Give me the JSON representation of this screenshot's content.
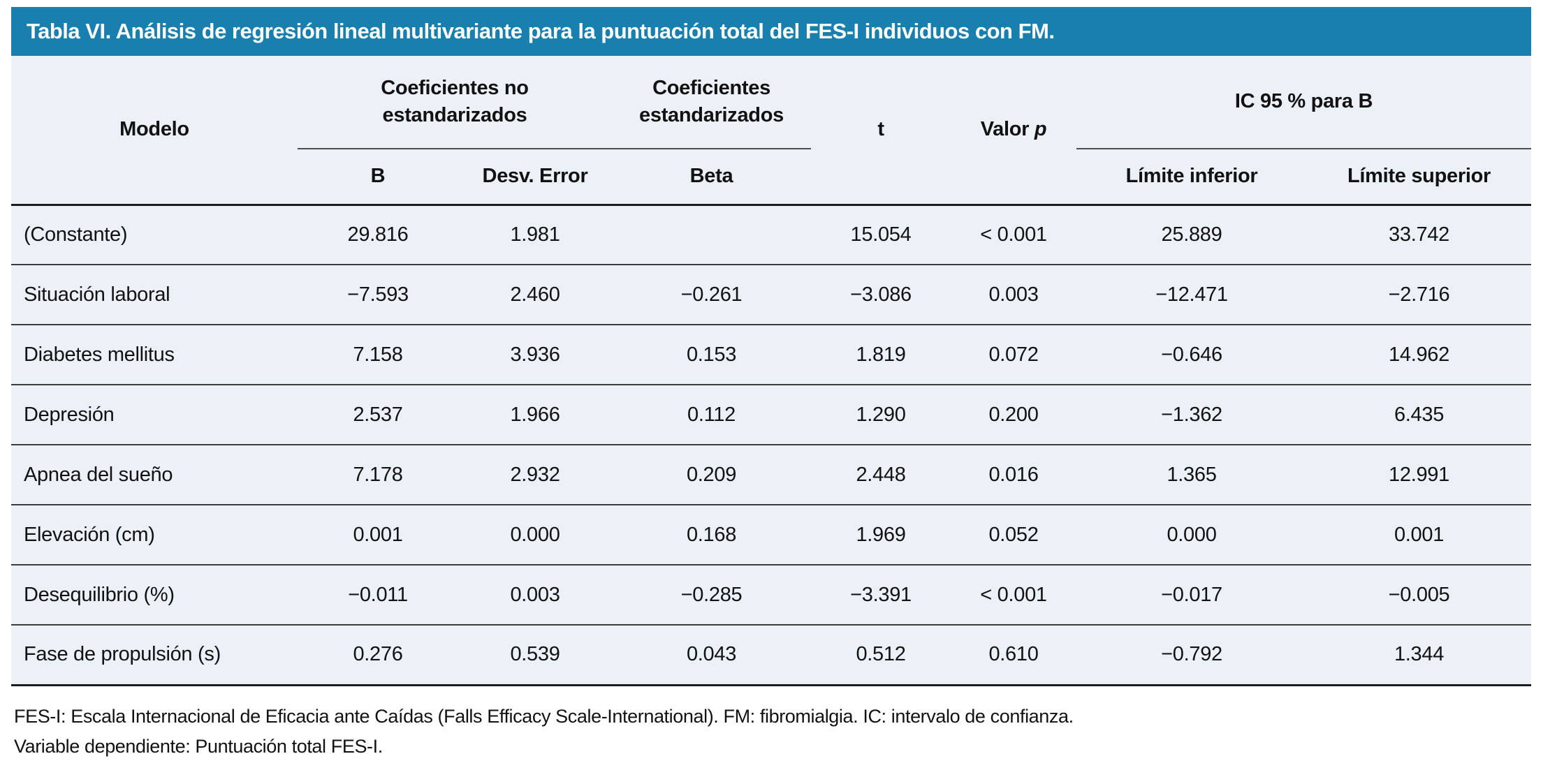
{
  "title": "Tabla VI. Análisis de regresión lineal multivariante para la puntuación total del FES-I individuos con FM.",
  "colors": {
    "header_bar_bg": "#187FAE",
    "header_bar_text": "#FFFFFF",
    "table_bg": "#ECF0F7",
    "text": "#121212",
    "rule_dark": "#1B1B1B",
    "rule_row": "#3D3D3D",
    "rule_spanner": "#4D4D4D",
    "page_bg": "#FFFFFF"
  },
  "header": {
    "model_label": "Modelo",
    "spanners": [
      {
        "label": "Coeficientes no estandarizados"
      },
      {
        "label": "Coeficientes estandarizados"
      },
      {
        "label": "IC 95 % para B"
      }
    ],
    "t_label": "t",
    "p_label_prefix": "Valor ",
    "p_label_italic": "p",
    "sub_headers": [
      "B",
      "Desv. Error",
      "Beta",
      "Límite inferior",
      "Límite superior"
    ]
  },
  "rows": [
    {
      "label": "(Constante)",
      "b": "29.816",
      "std_error": "1.981",
      "beta": "",
      "t": "15.054",
      "p": "< 0.001",
      "ci_lower": "25.889",
      "ci_upper": "33.742"
    },
    {
      "label": "Situación laboral",
      "b": "−7.593",
      "std_error": "2.460",
      "beta": "−0.261",
      "t": "−3.086",
      "p": "0.003",
      "ci_lower": "−12.471",
      "ci_upper": "−2.716"
    },
    {
      "label": "Diabetes mellitus",
      "b": "7.158",
      "std_error": "3.936",
      "beta": "0.153",
      "t": "1.819",
      "p": "0.072",
      "ci_lower": "−0.646",
      "ci_upper": "14.962"
    },
    {
      "label": "Depresión",
      "b": "2.537",
      "std_error": "1.966",
      "beta": "0.112",
      "t": "1.290",
      "p": "0.200",
      "ci_lower": "−1.362",
      "ci_upper": "6.435"
    },
    {
      "label": "Apnea del sueño",
      "b": "7.178",
      "std_error": "2.932",
      "beta": "0.209",
      "t": "2.448",
      "p": "0.016",
      "ci_lower": "1.365",
      "ci_upper": "12.991"
    },
    {
      "label": "Elevación (cm)",
      "b": "0.001",
      "std_error": "0.000",
      "beta": "0.168",
      "t": "1.969",
      "p": "0.052",
      "ci_lower": "0.000",
      "ci_upper": "0.001"
    },
    {
      "label": "Desequilibrio (%)",
      "b": "−0.011",
      "std_error": "0.003",
      "beta": "−0.285",
      "t": "−3.391",
      "p": "< 0.001",
      "ci_lower": "−0.017",
      "ci_upper": "−0.005"
    },
    {
      "label": "Fase de propulsión (s)",
      "b": "0.276",
      "std_error": "0.539",
      "beta": "0.043",
      "t": "0.512",
      "p": "0.610",
      "ci_lower": "−0.792",
      "ci_upper": "1.344"
    }
  ],
  "footnotes": [
    "FES-I: Escala Internacional de Eficacia ante Caídas (Falls Efficacy Scale-International). FM: fibromialgia. IC: intervalo de confianza.",
    "Variable dependiente: Puntuación total FES-I."
  ]
}
